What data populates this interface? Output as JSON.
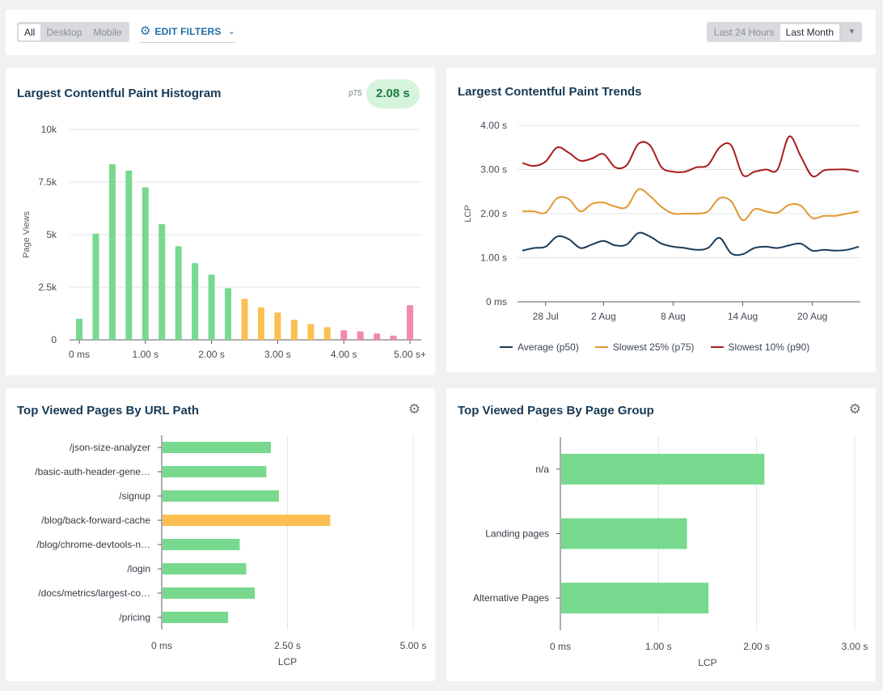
{
  "filters": {
    "device_options": [
      "All",
      "Desktop",
      "Mobile"
    ],
    "device_selected": "All",
    "edit_filters_label": "EDIT FILTERS",
    "range_options": [
      "Last 24 Hours",
      "Last Month"
    ],
    "range_selected": "Last Month",
    "icons": [
      "gear-icon",
      "chevron-down-icon",
      "caret-down-icon"
    ]
  },
  "histogram": {
    "title": "Largest Contentful Paint Histogram",
    "p75_label": "p75",
    "p75_value": "2.08 s"
  },
  "trends": {
    "title": "Largest Contentful Paint Trends"
  },
  "url_path": {
    "title": "Top Viewed Pages By URL Path"
  },
  "page_group": {
    "title": "Top Viewed Pages By Page Group"
  },
  "colors": {
    "good": "#78d98e",
    "needs_improvement": "#fbbf52",
    "poor": "#f28aa8",
    "avg": "#1b3b57",
    "p75": "#e39731",
    "p90": "#a81d1d"
  },
  "chart_data": [
    {
      "type": "bar",
      "title": "Largest Contentful Paint Histogram",
      "ylabel": "Page Views",
      "xlabel": "",
      "ylim": [
        0,
        10000
      ],
      "yticks": [
        "0",
        "2.5k",
        "5k",
        "7.5k",
        "10k"
      ],
      "ytick_values": [
        0,
        2500,
        5000,
        7500,
        10000
      ],
      "xticks": [
        "0 ms",
        "1.00 s",
        "2.00 s",
        "3.00 s",
        "4.00 s",
        "5.00 s+"
      ],
      "bins_seconds": [
        0,
        0.25,
        0.5,
        0.75,
        1.0,
        1.25,
        1.5,
        1.75,
        2.0,
        2.25,
        2.5,
        2.75,
        3.0,
        3.25,
        3.5,
        3.75,
        4.0,
        4.25,
        4.5,
        4.75,
        5.0
      ],
      "values": [
        1000,
        5050,
        8350,
        8050,
        7250,
        5500,
        4450,
        3650,
        3100,
        2450,
        1950,
        1550,
        1300,
        950,
        750,
        600,
        450,
        400,
        300,
        200,
        1650
      ],
      "bands": [
        "good",
        "good",
        "good",
        "good",
        "good",
        "good",
        "good",
        "good",
        "good",
        "good",
        "needs_improvement",
        "needs_improvement",
        "needs_improvement",
        "needs_improvement",
        "needs_improvement",
        "needs_improvement",
        "poor",
        "poor",
        "poor",
        "poor",
        "poor"
      ]
    },
    {
      "type": "line",
      "title": "Largest Contentful Paint Trends",
      "ylabel": "LCP",
      "ylim": [
        0,
        4
      ],
      "yticks": [
        "0 ms",
        "1.00 s",
        "2.00 s",
        "3.00 s",
        "4.00 s"
      ],
      "ytick_values": [
        0,
        1,
        2,
        3,
        4
      ],
      "xticks": [
        "28 Jul",
        "2 Aug",
        "8 Aug",
        "14 Aug",
        "20 Aug"
      ],
      "xtick_day_index": [
        2,
        7,
        13,
        19,
        25
      ],
      "x_day_index": [
        0,
        1,
        2,
        3,
        4,
        5,
        6,
        7,
        8,
        9,
        10,
        11,
        12,
        13,
        14,
        15,
        16,
        17,
        18,
        19,
        20,
        21,
        22,
        23,
        24,
        25,
        26,
        27,
        28,
        29
      ],
      "series": [
        {
          "name": "Average (p50)",
          "values": [
            1.16,
            1.22,
            1.25,
            1.48,
            1.42,
            1.22,
            1.3,
            1.38,
            1.28,
            1.3,
            1.56,
            1.48,
            1.32,
            1.25,
            1.22,
            1.18,
            1.22,
            1.45,
            1.1,
            1.08,
            1.22,
            1.25,
            1.22,
            1.28,
            1.32,
            1.16,
            1.18,
            1.16,
            1.18,
            1.25
          ]
        },
        {
          "name": "Slowest 25% (p75)",
          "values": [
            2.05,
            2.05,
            2.02,
            2.35,
            2.33,
            2.05,
            2.22,
            2.25,
            2.16,
            2.15,
            2.55,
            2.4,
            2.15,
            2.0,
            2.0,
            2.0,
            2.05,
            2.35,
            2.28,
            1.85,
            2.1,
            2.05,
            2.02,
            2.2,
            2.18,
            1.9,
            1.95,
            1.95,
            2.0,
            2.05
          ]
        },
        {
          "name": "Slowest 10% (p90)",
          "values": [
            3.15,
            3.08,
            3.18,
            3.5,
            3.38,
            3.2,
            3.25,
            3.35,
            3.05,
            3.1,
            3.58,
            3.55,
            3.05,
            2.95,
            2.95,
            3.05,
            3.1,
            3.5,
            3.55,
            2.88,
            2.95,
            3.0,
            3.0,
            3.75,
            3.3,
            2.85,
            2.98,
            3.0,
            3.0,
            2.95
          ]
        }
      ]
    },
    {
      "type": "bar",
      "orientation": "horizontal",
      "title": "Top Viewed Pages By URL Path",
      "xlabel": "LCP",
      "xlim": [
        0,
        5
      ],
      "xticks": [
        "0 ms",
        "2.50 s",
        "5.00 s"
      ],
      "xtick_values": [
        0,
        2.5,
        5
      ],
      "categories": [
        "/json-size-analyzer",
        "/basic-auth-header-gene…",
        "/signup",
        "/blog/back-forward-cache",
        "/blog/chrome-devtools-n…",
        "/login",
        "/docs/metrics/largest-co…",
        "/pricing"
      ],
      "values": [
        2.17,
        2.08,
        2.33,
        3.35,
        1.55,
        1.68,
        1.85,
        1.32
      ],
      "bands": [
        "good",
        "good",
        "good",
        "needs_improvement",
        "good",
        "good",
        "good",
        "good"
      ]
    },
    {
      "type": "bar",
      "orientation": "horizontal",
      "title": "Top Viewed Pages By Page Group",
      "xlabel": "LCP",
      "xlim": [
        0,
        3
      ],
      "xticks": [
        "0 ms",
        "1.00 s",
        "2.00 s",
        "3.00 s"
      ],
      "xtick_values": [
        0,
        1,
        2,
        3
      ],
      "categories": [
        "n/a",
        "Landing pages",
        "Alternative Pages"
      ],
      "values": [
        2.08,
        1.29,
        1.51
      ],
      "bands": [
        "good",
        "good",
        "good"
      ]
    }
  ]
}
